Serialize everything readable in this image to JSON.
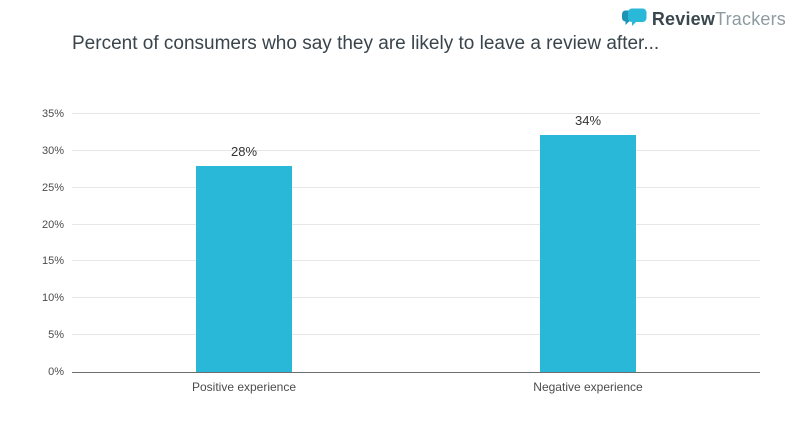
{
  "logo": {
    "brand_bold": "Review",
    "brand_light": "Trackers",
    "icon": "chat-bubble-icon",
    "icon_color": "#2ab8d9",
    "icon_accent_color": "#1d93b5"
  },
  "chart_data": {
    "type": "bar",
    "title": "Percent of consumers who say they are likely to leave a review after...",
    "categories": [
      "Positive experience",
      "Negative experience"
    ],
    "values": [
      28,
      34
    ],
    "value_labels": [
      "28%",
      "34%"
    ],
    "xlabel": "",
    "ylabel": "",
    "ylim": [
      0,
      35
    ],
    "yticks": [
      0,
      5,
      10,
      15,
      20,
      25,
      30,
      35
    ],
    "ytick_labels": [
      "0%",
      "5%",
      "10%",
      "15%",
      "20%",
      "25%",
      "30%",
      "35%"
    ],
    "bar_color": "#29b8d8",
    "grid": true,
    "legend": false,
    "gridline_color": "#e7e7e7",
    "baseline_color": "#6f6f6f"
  }
}
